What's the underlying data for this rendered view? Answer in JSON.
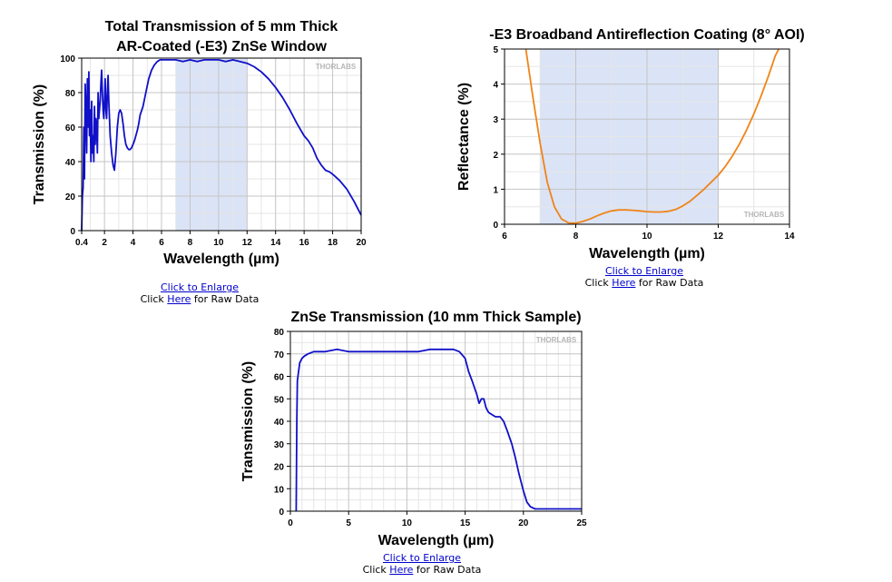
{
  "chart_data": [
    {
      "type": "line",
      "title_lines": [
        "Total Transmission of 5 mm Thick",
        "AR-Coated (-E3) ZnSe Window"
      ],
      "xlabel": "Wavelength (µm)",
      "ylabel": "Transmission (%)",
      "xlim": [
        0.4,
        20
      ],
      "ylim": [
        0,
        100
      ],
      "x_ticks": [
        "0.4",
        "2",
        "4",
        "6",
        "8",
        "10",
        "12",
        "14",
        "16",
        "18",
        "20"
      ],
      "x_tick_values": [
        0.4,
        2,
        4,
        6,
        8,
        10,
        12,
        14,
        16,
        18,
        20
      ],
      "y_ticks": [
        0,
        20,
        40,
        60,
        80,
        100
      ],
      "grid": true,
      "shaded_band": [
        7,
        12
      ],
      "watermark": "THORLABS",
      "series": [
        {
          "color": "#1010c8",
          "x": [
            0.4,
            0.45,
            0.5,
            0.55,
            0.6,
            0.65,
            0.7,
            0.75,
            0.8,
            0.85,
            0.9,
            0.95,
            1.0,
            1.05,
            1.1,
            1.15,
            1.2,
            1.25,
            1.3,
            1.35,
            1.4,
            1.45,
            1.5,
            1.55,
            1.6,
            1.65,
            1.7,
            1.75,
            1.8,
            1.85,
            1.9,
            1.95,
            2.0,
            2.05,
            2.1,
            2.15,
            2.2,
            2.25,
            2.3,
            2.4,
            2.5,
            2.6,
            2.7,
            2.8,
            2.9,
            3.0,
            3.1,
            3.2,
            3.3,
            3.4,
            3.5,
            3.6,
            3.7,
            3.8,
            3.9,
            4.0,
            4.1,
            4.2,
            4.3,
            4.4,
            4.5,
            4.7,
            4.9,
            5.1,
            5.3,
            5.5,
            5.7,
            5.9,
            6.1,
            6.3,
            6.5,
            6.7,
            7.0,
            7.5,
            8.0,
            8.5,
            9.0,
            9.5,
            10.0,
            10.5,
            11.0,
            11.5,
            12.0,
            12.5,
            13.0,
            13.5,
            14.0,
            14.5,
            15.0,
            15.5,
            16.0,
            16.3,
            16.6,
            16.9,
            17.2,
            17.5,
            17.8,
            18.1,
            18.5,
            19.0,
            19.5,
            20.0
          ],
          "y": [
            0,
            20,
            25,
            60,
            30,
            85,
            70,
            45,
            88,
            60,
            92,
            55,
            70,
            40,
            75,
            45,
            55,
            40,
            72,
            50,
            65,
            60,
            45,
            80,
            65,
            70,
            75,
            85,
            93,
            80,
            70,
            65,
            75,
            88,
            70,
            65,
            80,
            90,
            75,
            55,
            45,
            38,
            35,
            45,
            60,
            68,
            70,
            68,
            62,
            55,
            50,
            48,
            47,
            47,
            48,
            50,
            52,
            55,
            58,
            62,
            67,
            72,
            80,
            88,
            93,
            96,
            98,
            99,
            99,
            99,
            99,
            99,
            99,
            98,
            99,
            98,
            99,
            99,
            99,
            98,
            99,
            98,
            97,
            95,
            92,
            88,
            83,
            77,
            70,
            62,
            55,
            52,
            48,
            42,
            38,
            35,
            34,
            32,
            29,
            24,
            17,
            9
          ]
        }
      ],
      "click_text": "Click to Enlarge",
      "raw_prefix": "Click",
      "raw_link": "Here",
      "raw_suffix": "for Raw Data"
    },
    {
      "type": "line",
      "title_lines": [
        "-E3 Broadband Antireflection Coating (8° AOI)"
      ],
      "xlabel": "Wavelength (µm)",
      "ylabel": "Reflectance (%)",
      "xlim": [
        6,
        14
      ],
      "ylim": [
        0,
        5
      ],
      "x_ticks": [
        "6",
        "8",
        "10",
        "12",
        "14"
      ],
      "x_tick_values": [
        6,
        8,
        10,
        12,
        14
      ],
      "y_ticks": [
        0,
        1,
        2,
        3,
        4,
        5
      ],
      "grid": true,
      "shaded_band": [
        7,
        12
      ],
      "watermark": "THORLABS",
      "series": [
        {
          "color": "#f08418",
          "x": [
            6.6,
            6.8,
            7.0,
            7.2,
            7.4,
            7.6,
            7.8,
            8.0,
            8.2,
            8.4,
            8.6,
            8.8,
            9.0,
            9.2,
            9.4,
            9.6,
            9.8,
            10.0,
            10.2,
            10.4,
            10.6,
            10.8,
            11.0,
            11.2,
            11.4,
            11.6,
            11.8,
            12.0,
            12.2,
            12.4,
            12.6,
            12.8,
            13.0,
            13.2,
            13.4,
            13.6,
            13.7
          ],
          "y": [
            5.0,
            3.6,
            2.3,
            1.2,
            0.5,
            0.15,
            0.04,
            0.03,
            0.08,
            0.15,
            0.24,
            0.32,
            0.38,
            0.41,
            0.41,
            0.4,
            0.38,
            0.36,
            0.35,
            0.35,
            0.37,
            0.42,
            0.52,
            0.65,
            0.82,
            1.0,
            1.2,
            1.4,
            1.65,
            1.95,
            2.3,
            2.7,
            3.15,
            3.65,
            4.2,
            4.8,
            5.0
          ]
        }
      ],
      "click_text": "Click to Enlarge",
      "raw_prefix": "Click",
      "raw_link": "Here",
      "raw_suffix": "for Raw Data"
    },
    {
      "type": "line",
      "title_lines": [
        "ZnSe Transmission (10 mm Thick Sample)"
      ],
      "xlabel": "Wavelength (µm)",
      "ylabel": "Transmission (%)",
      "xlim": [
        0,
        25
      ],
      "ylim": [
        0,
        80
      ],
      "x_ticks": [
        "0",
        "5",
        "10",
        "15",
        "20",
        "25"
      ],
      "x_tick_values": [
        0,
        5,
        10,
        15,
        20,
        25
      ],
      "y_ticks": [
        0,
        10,
        20,
        30,
        40,
        50,
        60,
        70,
        80
      ],
      "grid": true,
      "watermark": "THORLABS",
      "series": [
        {
          "color": "#1010c8",
          "x": [
            0.5,
            0.55,
            0.6,
            0.7,
            0.8,
            1.0,
            1.2,
            1.5,
            2.0,
            3.0,
            4.0,
            5.0,
            6.0,
            7.0,
            8.0,
            9.0,
            10.0,
            11.0,
            12.0,
            13.0,
            14.0,
            14.5,
            15.0,
            15.3,
            15.6,
            16.0,
            16.2,
            16.4,
            16.6,
            16.8,
            17.0,
            17.3,
            17.6,
            18.0,
            18.3,
            18.6,
            19.0,
            19.3,
            19.6,
            20.0,
            20.3,
            20.6,
            21.0,
            21.5,
            22.0,
            23.0,
            24.0,
            25.0
          ],
          "y": [
            0,
            40,
            58,
            62,
            66,
            68,
            69,
            70,
            71,
            71,
            72,
            71,
            71,
            71,
            71,
            71,
            71,
            71,
            72,
            72,
            72,
            71,
            68,
            62,
            58,
            52,
            48,
            50,
            50,
            46,
            44,
            43,
            42,
            42,
            40,
            36,
            30,
            24,
            17,
            9,
            4,
            2,
            1,
            1,
            1,
            1,
            1,
            1
          ]
        }
      ],
      "click_text": "Click to Enlarge",
      "raw_prefix": "Click",
      "raw_link": "Here",
      "raw_suffix": "for Raw Data"
    }
  ]
}
